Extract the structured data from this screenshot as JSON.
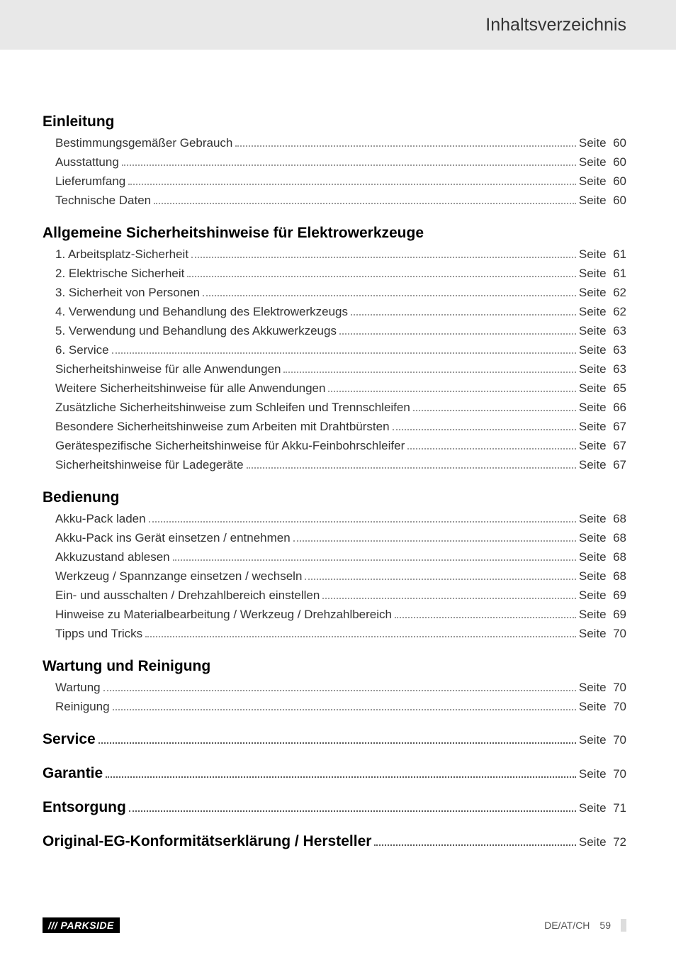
{
  "header": "Inhaltsverzeichnis",
  "page_label_prefix": "Seite",
  "sections": [
    {
      "title": "Einleitung",
      "title_page": null,
      "entries": [
        {
          "text": "Bestimmungsgemäßer Gebrauch",
          "page": 60
        },
        {
          "text": "Ausstattung",
          "page": 60
        },
        {
          "text": "Lieferumfang",
          "page": 60
        },
        {
          "text": "Technische Daten",
          "page": 60
        }
      ]
    },
    {
      "title": "Allgemeine Sicherheitshinweise für Elektrowerkzeuge",
      "title_page": null,
      "entries": [
        {
          "text": "1. Arbeitsplatz-Sicherheit",
          "page": 61
        },
        {
          "text": "2. Elektrische Sicherheit",
          "page": 61
        },
        {
          "text": "3. Sicherheit von Personen",
          "page": 62
        },
        {
          "text": "4. Verwendung und Behandlung des Elektrowerkzeugs",
          "page": 62
        },
        {
          "text": "5. Verwendung und Behandlung des Akkuwerkzeugs",
          "page": 63
        },
        {
          "text": "6. Service",
          "page": 63
        },
        {
          "text": "Sicherheitshinweise für alle Anwendungen",
          "page": 63
        },
        {
          "text": "Weitere Sicherheitshinweise für alle Anwendungen",
          "page": 65
        },
        {
          "text": "Zusätzliche Sicherheitshinweise zum Schleifen und Trennschleifen",
          "page": 66
        },
        {
          "text": "Besondere Sicherheitshinweise zum Arbeiten mit Drahtbürsten",
          "page": 67
        },
        {
          "text": "Gerätespezifische Sicherheitshinweise für Akku-Feinbohrschleifer",
          "page": 67
        },
        {
          "text": "Sicherheitshinweise für Ladegeräte",
          "page": 67
        }
      ]
    },
    {
      "title": "Bedienung",
      "title_page": null,
      "entries": [
        {
          "text": "Akku-Pack laden",
          "page": 68
        },
        {
          "text": "Akku-Pack ins Gerät einsetzen / entnehmen",
          "page": 68
        },
        {
          "text": "Akkuzustand ablesen",
          "page": 68
        },
        {
          "text": "Werkzeug / Spannzange einsetzen / wechseln",
          "page": 68
        },
        {
          "text": "Ein- und ausschalten / Drehzahlbereich einstellen",
          "page": 69
        },
        {
          "text": "Hinweise zu Materialbearbeitung / Werkzeug / Drehzahlbereich",
          "page": 69
        },
        {
          "text": "Tipps und Tricks",
          "page": 70
        }
      ]
    },
    {
      "title": "Wartung und Reinigung",
      "title_page": null,
      "entries": [
        {
          "text": "Wartung",
          "page": 70
        },
        {
          "text": "Reinigung",
          "page": 70
        }
      ]
    },
    {
      "title": "Service",
      "title_page": 70,
      "entries": []
    },
    {
      "title": "Garantie",
      "title_page": 70,
      "entries": []
    },
    {
      "title": "Entsorgung",
      "title_page": 71,
      "entries": []
    },
    {
      "title": "Original-EG-Konformitätserklärung / Hersteller",
      "title_page": 72,
      "entries": []
    }
  ],
  "footer": {
    "logo": "/// PARKSIDE",
    "locale": "DE/AT/CH",
    "page_number": 59
  }
}
